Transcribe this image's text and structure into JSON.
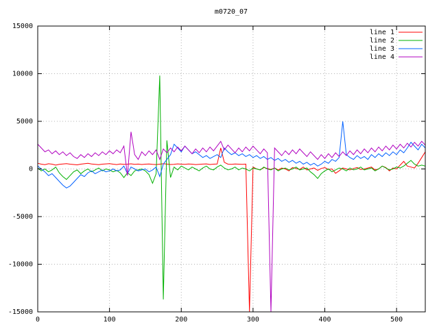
{
  "chart_data": {
    "type": "line",
    "title": "m0720_07",
    "xlabel": "",
    "ylabel": "",
    "xlim": [
      0,
      540
    ],
    "ylim": [
      -15000,
      15000
    ],
    "xticks": [
      0,
      100,
      200,
      300,
      400,
      500
    ],
    "yticks": [
      -15000,
      -10000,
      -5000,
      0,
      5000,
      10000,
      15000
    ],
    "grid": true,
    "legend_position": "top-right",
    "x_start": 0,
    "x_step": 5,
    "series": [
      {
        "name": "line 1",
        "color": "#ff0000",
        "values": [
          600,
          500,
          450,
          550,
          500,
          400,
          480,
          520,
          560,
          500,
          470,
          430,
          500,
          550,
          600,
          520,
          480,
          450,
          500,
          530,
          560,
          500,
          460,
          520,
          480,
          500,
          540,
          490,
          510,
          470,
          500,
          520,
          480,
          460,
          500,
          550,
          510,
          470,
          490,
          530,
          500,
          480,
          520,
          500,
          460,
          490,
          510,
          530,
          470,
          500,
          520,
          2200,
          700,
          500,
          480,
          520,
          500,
          490,
          510,
          -15000,
          200,
          0,
          -100,
          150,
          50,
          -50,
          100,
          -100,
          100,
          0,
          -200,
          150,
          50,
          -50,
          200,
          -100,
          0,
          100,
          -150,
          50,
          150,
          -50,
          0,
          -450,
          -200,
          100,
          0,
          -100,
          50,
          150,
          -50,
          0,
          100,
          200,
          -100,
          0,
          300,
          150,
          -200,
          100,
          0,
          400,
          800,
          300,
          200,
          100,
          600,
          1200,
          1800
        ]
      },
      {
        "name": "line 2",
        "color": "#00b000",
        "values": [
          100,
          -200,
          0,
          -300,
          -100,
          200,
          -400,
          -800,
          -1100,
          -700,
          -300,
          -100,
          -500,
          -200,
          0,
          -300,
          -100,
          100,
          -200,
          0,
          -100,
          -300,
          -150,
          -400,
          -900,
          -400,
          -700,
          -200,
          -100,
          0,
          -200,
          -600,
          -1500,
          -500,
          9800,
          -13700,
          3000,
          -900,
          200,
          -100,
          300,
          100,
          -100,
          200,
          0,
          -200,
          100,
          300,
          0,
          -100,
          200,
          400,
          100,
          -100,
          0,
          200,
          -100,
          100,
          0,
          -200,
          100,
          0,
          -100,
          200,
          0,
          -100,
          100,
          -200,
          0,
          100,
          -100,
          0,
          200,
          -100,
          0,
          100,
          -300,
          -600,
          -1000,
          -500,
          -200,
          0,
          -300,
          -100,
          100,
          0,
          -200,
          100,
          -100,
          0,
          200,
          -100,
          0,
          100,
          -200,
          0,
          300,
          100,
          -100,
          0,
          200,
          100,
          300,
          600,
          900,
          500,
          300,
          400,
          300
        ]
      },
      {
        "name": "line 3",
        "color": "#0060ff",
        "values": [
          300,
          0,
          -300,
          -700,
          -500,
          -900,
          -1300,
          -1700,
          -2000,
          -1800,
          -1400,
          -1000,
          -600,
          -800,
          -400,
          -200,
          -500,
          -300,
          -100,
          -300,
          -200,
          0,
          -200,
          -100,
          300,
          -500,
          200,
          0,
          -200,
          -100,
          0,
          -300,
          -100,
          200,
          -800,
          500,
          1000,
          1500,
          2600,
          2200,
          1800,
          2400,
          2000,
          1600,
          1800,
          1500,
          1200,
          1400,
          1100,
          1300,
          1500,
          1200,
          2200,
          1800,
          1500,
          1700,
          1400,
          1600,
          1300,
          1500,
          1200,
          1400,
          1100,
          1300,
          1000,
          1200,
          900,
          1100,
          800,
          1000,
          700,
          900,
          600,
          800,
          500,
          700,
          400,
          600,
          300,
          500,
          800,
          600,
          1000,
          800,
          1200,
          5000,
          1500,
          1200,
          1000,
          1400,
          1100,
          1300,
          1000,
          1500,
          1200,
          1600,
          1300,
          1700,
          1400,
          1800,
          1500,
          2000,
          1700,
          2200,
          2800,
          2400,
          2000,
          2600,
          2200
        ]
      },
      {
        "name": "line 4",
        "color": "#b000c0",
        "values": [
          2600,
          2200,
          1800,
          2000,
          1600,
          1900,
          1500,
          1800,
          1400,
          1700,
          1300,
          1100,
          1500,
          1200,
          1600,
          1300,
          1700,
          1400,
          1800,
          1500,
          1900,
          1600,
          2000,
          1700,
          2400,
          -700,
          3900,
          1500,
          1000,
          1800,
          1400,
          1900,
          1500,
          2000,
          1000,
          2100,
          1700,
          2200,
          1800,
          2300,
          1900,
          2400,
          2000,
          1600,
          2100,
          1700,
          2200,
          1800,
          2300,
          1900,
          2400,
          2900,
          2000,
          2500,
          2100,
          1700,
          2200,
          1800,
          2300,
          1900,
          2400,
          2000,
          1600,
          2100,
          1700,
          -15000,
          2200,
          1800,
          1400,
          1900,
          1500,
          2000,
          1600,
          2100,
          1700,
          1300,
          1800,
          1400,
          1000,
          1500,
          1100,
          1600,
          1200,
          1700,
          1300,
          1800,
          1400,
          1900,
          1500,
          2000,
          1600,
          2100,
          1700,
          2200,
          1800,
          2300,
          1900,
          2400,
          2000,
          2500,
          2100,
          2600,
          2200,
          2700,
          2300,
          2800,
          2400,
          2900,
          2500
        ]
      }
    ]
  }
}
